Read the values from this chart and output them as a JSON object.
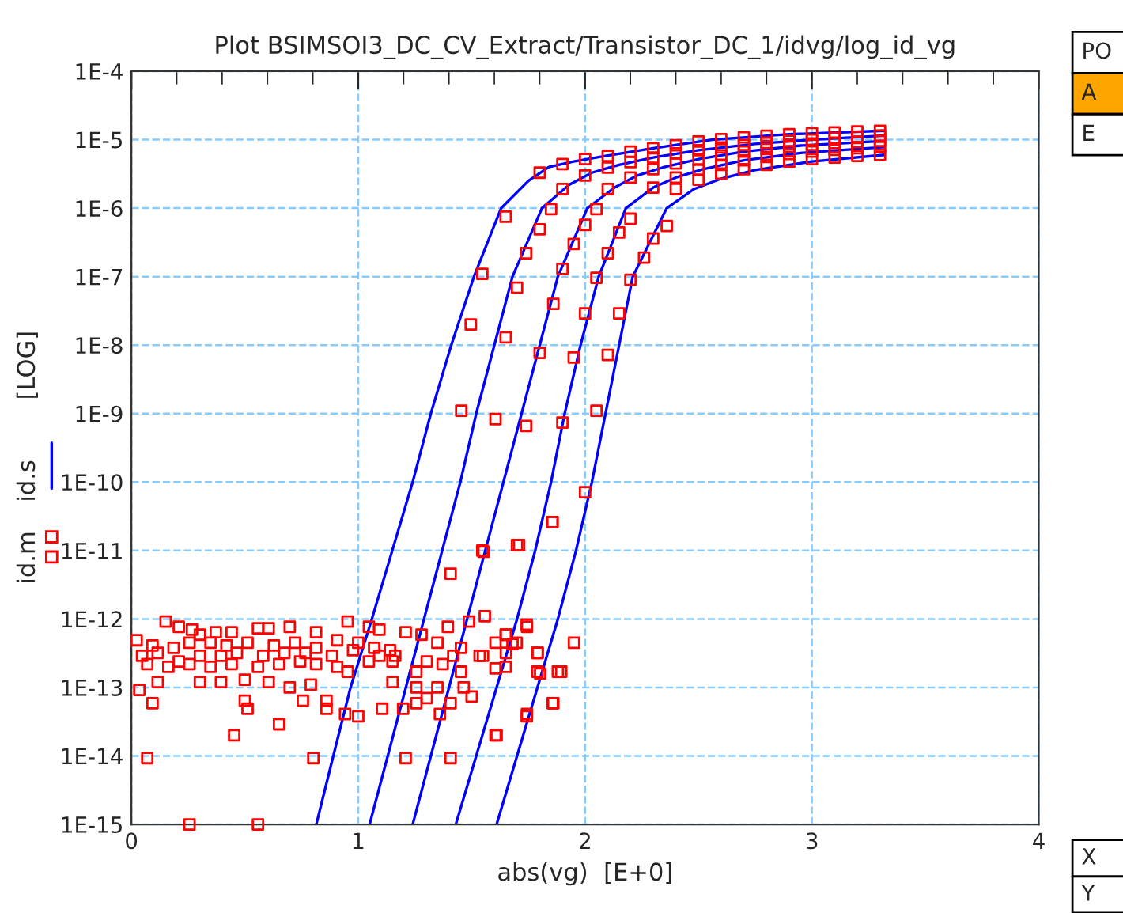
{
  "chart_data": {
    "type": "line",
    "title": "Plot BSIMSOI3_DC_CV_Extract/Transistor_DC_1/idvg/log_id_vg",
    "xlabel": "abs(vg)  [E+0]",
    "ylabel": "[LOG]",
    "log": "y",
    "grid": true,
    "legend": "left",
    "xlim": [
      0,
      4
    ],
    "xticks": [
      0,
      1,
      2,
      3,
      4
    ],
    "ylim": [
      1e-15,
      0.0001
    ],
    "yticks": [
      {
        "value": 1e-15,
        "label": "1E-15"
      },
      {
        "value": 1e-14,
        "label": "1E-14"
      },
      {
        "value": 1e-13,
        "label": "1E-13"
      },
      {
        "value": 1e-12,
        "label": "1E-12"
      },
      {
        "value": 1e-11,
        "label": "1E-11"
      },
      {
        "value": 1e-10,
        "label": "1E-10"
      },
      {
        "value": 1e-09,
        "label": "1E-9"
      },
      {
        "value": 1e-08,
        "label": "1E-8"
      },
      {
        "value": 1e-07,
        "label": "1E-7"
      },
      {
        "value": 1e-06,
        "label": "1E-6"
      },
      {
        "value": 1e-05,
        "label": "1E-5"
      },
      {
        "value": 0.0001,
        "label": "1E-4"
      }
    ],
    "annotations": [
      "PO",
      "A",
      "E",
      "X",
      "Y"
    ],
    "series": [
      {
        "name": "id.m",
        "type": "scatter",
        "marker": "square",
        "color": "#ff0000",
        "x": [
          0.151,
          0.209,
          0.267,
          0.302,
          0.372,
          0.442,
          0.558,
          0.605,
          0.698,
          0.814,
          0.953,
          1.047,
          1.093,
          1.209,
          1.279,
          1.395,
          1.488,
          1.558,
          1.744,
          1.651,
          0.023,
          0.093,
          0.186,
          0.256,
          0.349,
          0.419,
          0.512,
          0.628,
          0.721,
          0.814,
          0.907,
          1.0,
          1.07,
          1.14,
          1.349,
          1.453,
          1.605,
          1.698,
          0.047,
          0.116,
          0.209,
          0.302,
          0.395,
          0.465,
          0.581,
          0.674,
          0.767,
          0.884,
          0.977,
          1.093,
          1.163,
          1.302,
          1.419,
          1.535,
          1.651,
          1.791,
          1.895,
          0.07,
          0.163,
          0.256,
          0.349,
          0.442,
          0.558,
          0.651,
          0.744,
          0.814,
          0.907,
          1.047,
          1.151,
          1.256,
          1.372,
          1.453,
          1.605,
          1.802,
          0.116,
          0.302,
          0.395,
          0.5,
          0.605,
          0.698,
          0.791,
          0.953,
          1.151,
          1.256,
          1.349,
          1.465,
          0.035,
          0.093,
          0.5,
          0.512,
          0.651,
          0.756,
          0.86,
          0.86,
          0.942,
          1.0,
          1.105,
          1.198,
          1.256,
          1.302,
          1.36,
          1.407,
          1.5,
          1.744,
          1.86,
          0.453,
          0.07,
          0.802,
          1.209,
          1.407,
          1.605,
          0.256,
          0.558,
          1.407,
          1.553,
          1.709,
          1.856,
          2.0,
          1.856,
          1.7,
          1.547,
          1.743,
          1.951,
          1.65,
          1.68,
          1.79,
          1.55,
          1.79,
          1.88,
          1.65,
          1.857,
          1.743,
          1.61,
          1.454,
          1.496,
          1.547,
          1.605,
          1.74,
          1.9,
          2.05,
          1.65,
          1.8,
          1.95,
          2.1,
          1.7,
          1.86,
          2.0,
          2.15,
          1.9,
          2.05,
          2.2,
          1.74,
          1.95,
          2.1,
          2.26,
          1.8,
          2.0,
          2.15,
          2.3,
          1.65,
          1.85,
          2.05,
          2.2,
          2.36,
          1.8,
          1.9,
          2.0,
          2.1,
          2.2,
          2.3,
          2.4,
          2.5,
          2.6,
          2.7,
          2.8,
          2.9,
          3.0,
          3.1,
          3.2,
          3.3,
          1.9,
          2.0,
          2.1,
          2.2,
          2.3,
          2.4,
          2.5,
          2.6,
          2.7,
          2.8,
          2.9,
          3.0,
          3.1,
          3.2,
          3.3,
          2.1,
          2.2,
          2.3,
          2.4,
          2.5,
          2.6,
          2.7,
          2.8,
          2.9,
          3.0,
          3.1,
          3.2,
          3.3,
          2.3,
          2.4,
          2.5,
          2.6,
          2.7,
          2.8,
          2.9,
          3.0,
          3.1,
          3.2,
          3.3,
          2.4,
          2.5,
          2.6,
          2.7,
          2.8,
          2.9,
          3.0,
          3.1,
          3.2,
          3.3
        ],
        "values": [
          9.2e-13,
          7.7e-13,
          7e-13,
          5.9e-13,
          6.4e-13,
          6.4e-13,
          7.3e-13,
          7.3e-13,
          7.7e-13,
          6.4e-13,
          9.2e-13,
          7.7e-13,
          7e-13,
          6.4e-13,
          5.9e-13,
          7.7e-13,
          9.2e-13,
          1.1e-12,
          7.7e-13,
          5.9e-13,
          4.9e-13,
          4.1e-13,
          3.8e-13,
          4.5e-13,
          4.5e-13,
          4.1e-13,
          4.5e-13,
          4.1e-13,
          4.5e-13,
          3.8e-13,
          4.9e-13,
          4.5e-13,
          3.8e-13,
          3.5e-13,
          4.5e-13,
          3.8e-13,
          4.5e-13,
          4.5e-13,
          2.9e-13,
          3.2e-13,
          2.4e-13,
          2.9e-13,
          2.9e-13,
          3.2e-13,
          2.9e-13,
          3.2e-13,
          3.2e-13,
          2.9e-13,
          3.5e-13,
          2.9e-13,
          2.9e-13,
          2.4e-13,
          2.9e-13,
          2.9e-13,
          3.2e-13,
          3.2e-13,
          1.7e-13,
          2.2e-13,
          2e-13,
          2.2e-13,
          2e-13,
          2.2e-13,
          2e-13,
          2.2e-13,
          2.4e-13,
          2.2e-13,
          2e-13,
          2.4e-13,
          2.4e-13,
          1.7e-13,
          2.2e-13,
          1.7e-13,
          1.9e-13,
          1.6e-13,
          1.2e-13,
          1.2e-13,
          1.2e-13,
          1.3e-13,
          1.2e-13,
          1e-13,
          1.1e-13,
          1.7e-13,
          1.2e-13,
          1e-13,
          1e-13,
          1e-13,
          9.2e-14,
          5.9e-14,
          6.4e-14,
          4.9e-14,
          2.9e-14,
          6.4e-14,
          6.4e-14,
          4.9e-14,
          4.1e-14,
          3.8e-14,
          4.9e-14,
          4.9e-14,
          5.9e-14,
          7e-14,
          4.1e-14,
          5.9e-14,
          7.4e-14,
          4.1e-14,
          5.9e-14,
          2e-14,
          9.3e-15,
          9.3e-15,
          9.3e-15,
          9.3e-15,
          2e-14,
          1e-15,
          1e-15,
          4.6e-12,
          9.6e-12,
          1.2e-11,
          2.6e-11,
          7.1e-11,
          2.6e-11,
          1.2e-11,
          1e-11,
          8.3e-13,
          4.5e-13,
          5.9e-13,
          4.3e-13,
          3.2e-13,
          2.9e-13,
          1.7e-13,
          1.7e-13,
          2e-13,
          5.9e-14,
          3.8e-14,
          2e-14,
          1.1e-09,
          2e-08,
          1.1e-07,
          8.3e-10,
          6.6e-10,
          7.4e-10,
          1.1e-09,
          1.3e-08,
          7.7e-09,
          6.6e-09,
          7.2e-09,
          6.9e-08,
          4e-08,
          2.9e-08,
          2.9e-08,
          1.3e-07,
          9.6e-08,
          9e-08,
          2.2e-07,
          3e-07,
          2.2e-07,
          1.9e-07,
          4.9e-07,
          5.7e-07,
          4.4e-07,
          3.6e-07,
          7.5e-07,
          9.7e-07,
          9.7e-07,
          7e-07,
          5.5e-07,
          3.3e-06,
          4.4e-06,
          5.2e-06,
          5.8e-06,
          6.7e-06,
          7.5e-06,
          8.3e-06,
          9.4e-06,
          1.02e-05,
          1.08e-05,
          1.14e-05,
          1.2e-05,
          1.24e-05,
          1.28e-05,
          1.32e-05,
          1.35e-05,
          1.9e-06,
          3e-06,
          3.9e-06,
          4.7e-06,
          5.5e-06,
          6.3e-06,
          7e-06,
          7.7e-06,
          8.4e-06,
          9e-06,
          9.6e-06,
          1e-05,
          1.06e-05,
          1.1e-05,
          1.15e-05,
          1.9e-06,
          2.8e-06,
          3.7e-06,
          4.5e-06,
          5.2e-06,
          5.9e-06,
          6.7e-06,
          7.3e-06,
          7.9e-06,
          8.4e-06,
          8.9e-06,
          9.3e-06,
          9.6e-06,
          2e-06,
          2.8e-06,
          3.6e-06,
          4.3e-06,
          5e-06,
          5.6e-06,
          6.2e-06,
          6.7e-06,
          7.1e-06,
          7.5e-06,
          7.8e-06,
          1.9e-06,
          2.6e-06,
          3.2e-06,
          3.7e-06,
          4.3e-06,
          4.8e-06,
          5.2e-06,
          5.5e-06,
          5.8e-06,
          6e-06
        ]
      },
      {
        "name": "id.s",
        "color": "#0000ff",
        "x": [
          0.815,
          0.89,
          0.966,
          1.06,
          1.15,
          1.24,
          1.32,
          1.41,
          1.51,
          1.63,
          1.75,
          1.84,
          1.95,
          2.09,
          2.3,
          2.56,
          2.9,
          3.32
        ],
        "values": [
          1e-15,
          1e-14,
          1e-13,
          1e-12,
          1e-11,
          1e-10,
          1e-09,
          1e-08,
          1e-07,
          1e-06,
          2.5e-06,
          4e-06,
          4.8e-06,
          5.8e-06,
          7.5e-06,
          1e-05,
          1.2e-05,
          1.35e-05
        ]
      },
      {
        "color": "#0000ff",
        "x": [
          1.05,
          1.13,
          1.21,
          1.29,
          1.37,
          1.45,
          1.52,
          1.6,
          1.68,
          1.81,
          1.93,
          2.03,
          2.15,
          2.3,
          2.5,
          2.75,
          3.0,
          3.32
        ],
        "values": [
          1e-15,
          1e-14,
          1e-13,
          1e-12,
          1e-11,
          1e-10,
          1e-09,
          1e-08,
          1e-07,
          1e-06,
          2.2e-06,
          3.3e-06,
          4.3e-06,
          5.5e-06,
          7e-06,
          8.7e-06,
          1e-05,
          1.15e-05
        ]
      },
      {
        "color": "#0000ff",
        "x": [
          1.24,
          1.32,
          1.4,
          1.48,
          1.56,
          1.64,
          1.72,
          1.8,
          1.88,
          2.01,
          2.13,
          2.23,
          2.35,
          2.5,
          2.7,
          2.95,
          3.32
        ],
        "values": [
          1e-15,
          1e-14,
          1e-13,
          1e-12,
          1e-11,
          1e-10,
          1e-09,
          1e-08,
          1e-07,
          1e-06,
          2e-06,
          3e-06,
          4e-06,
          5.2e-06,
          6.7e-06,
          8.2e-06,
          9.6e-06
        ]
      },
      {
        "color": "#0000ff",
        "x": [
          1.43,
          1.52,
          1.61,
          1.7,
          1.78,
          1.85,
          1.91,
          1.98,
          2.06,
          2.18,
          2.3,
          2.4,
          2.52,
          2.7,
          2.95,
          3.32
        ],
        "values": [
          1e-15,
          1e-14,
          1e-13,
          1e-12,
          1e-11,
          1e-10,
          1e-09,
          1e-08,
          1e-07,
          1e-06,
          2e-06,
          2.8e-06,
          3.7e-06,
          5e-06,
          6.4e-06,
          7.8e-06
        ]
      },
      {
        "color": "#0000ff",
        "x": [
          1.61,
          1.7,
          1.79,
          1.88,
          1.96,
          2.03,
          2.09,
          2.15,
          2.21,
          2.36,
          2.48,
          2.6,
          2.75,
          3.0,
          3.32
        ],
        "values": [
          1e-15,
          1e-14,
          1e-13,
          1e-12,
          1e-11,
          1e-10,
          1e-09,
          1e-08,
          1e-07,
          1e-06,
          1.9e-06,
          2.7e-06,
          3.6e-06,
          4.8e-06,
          6e-06
        ]
      }
    ]
  }
}
